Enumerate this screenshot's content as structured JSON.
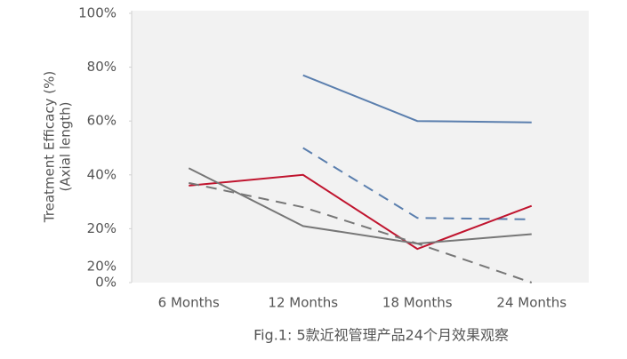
{
  "chart_data": {
    "type": "line",
    "y_label": [
      "Treatment Efficacy (%)",
      "(Axial length)"
    ],
    "caption": "Fig.1: 5款近视管理产品24个月效果观察",
    "categories": [
      "6 Months",
      "12 Months",
      "18 Months",
      "24 Months"
    ],
    "series": [
      {
        "color": "#5b7fae",
        "dash": false,
        "values": [
          null,
          77,
          60,
          59.5
        ]
      },
      {
        "color": "#5b7fae",
        "dash": true,
        "values": [
          null,
          50,
          24,
          23.5
        ]
      },
      {
        "color": "#c0152f",
        "dash": false,
        "values": [
          36,
          40,
          12.5,
          28.5
        ]
      },
      {
        "color": "#777777",
        "dash": false,
        "values": [
          42.5,
          21,
          14.5,
          18
        ]
      },
      {
        "color": "#777777",
        "dash": true,
        "values": [
          37,
          28,
          14.5,
          0
        ]
      }
    ],
    "ylim": [
      0,
      100
    ],
    "yticks": [
      {
        "value": 100,
        "label": "100%"
      },
      {
        "value": 80,
        "label": "80%"
      },
      {
        "value": 60,
        "label": "60%"
      },
      {
        "value": 40,
        "label": "40%"
      },
      {
        "value": 20,
        "label": "20%"
      },
      {
        "value": 0,
        "label": "0%"
      }
    ],
    "annotations": [
      {
        "text": "20%",
        "y": 6
      }
    ],
    "background": "#f2f2f2"
  }
}
